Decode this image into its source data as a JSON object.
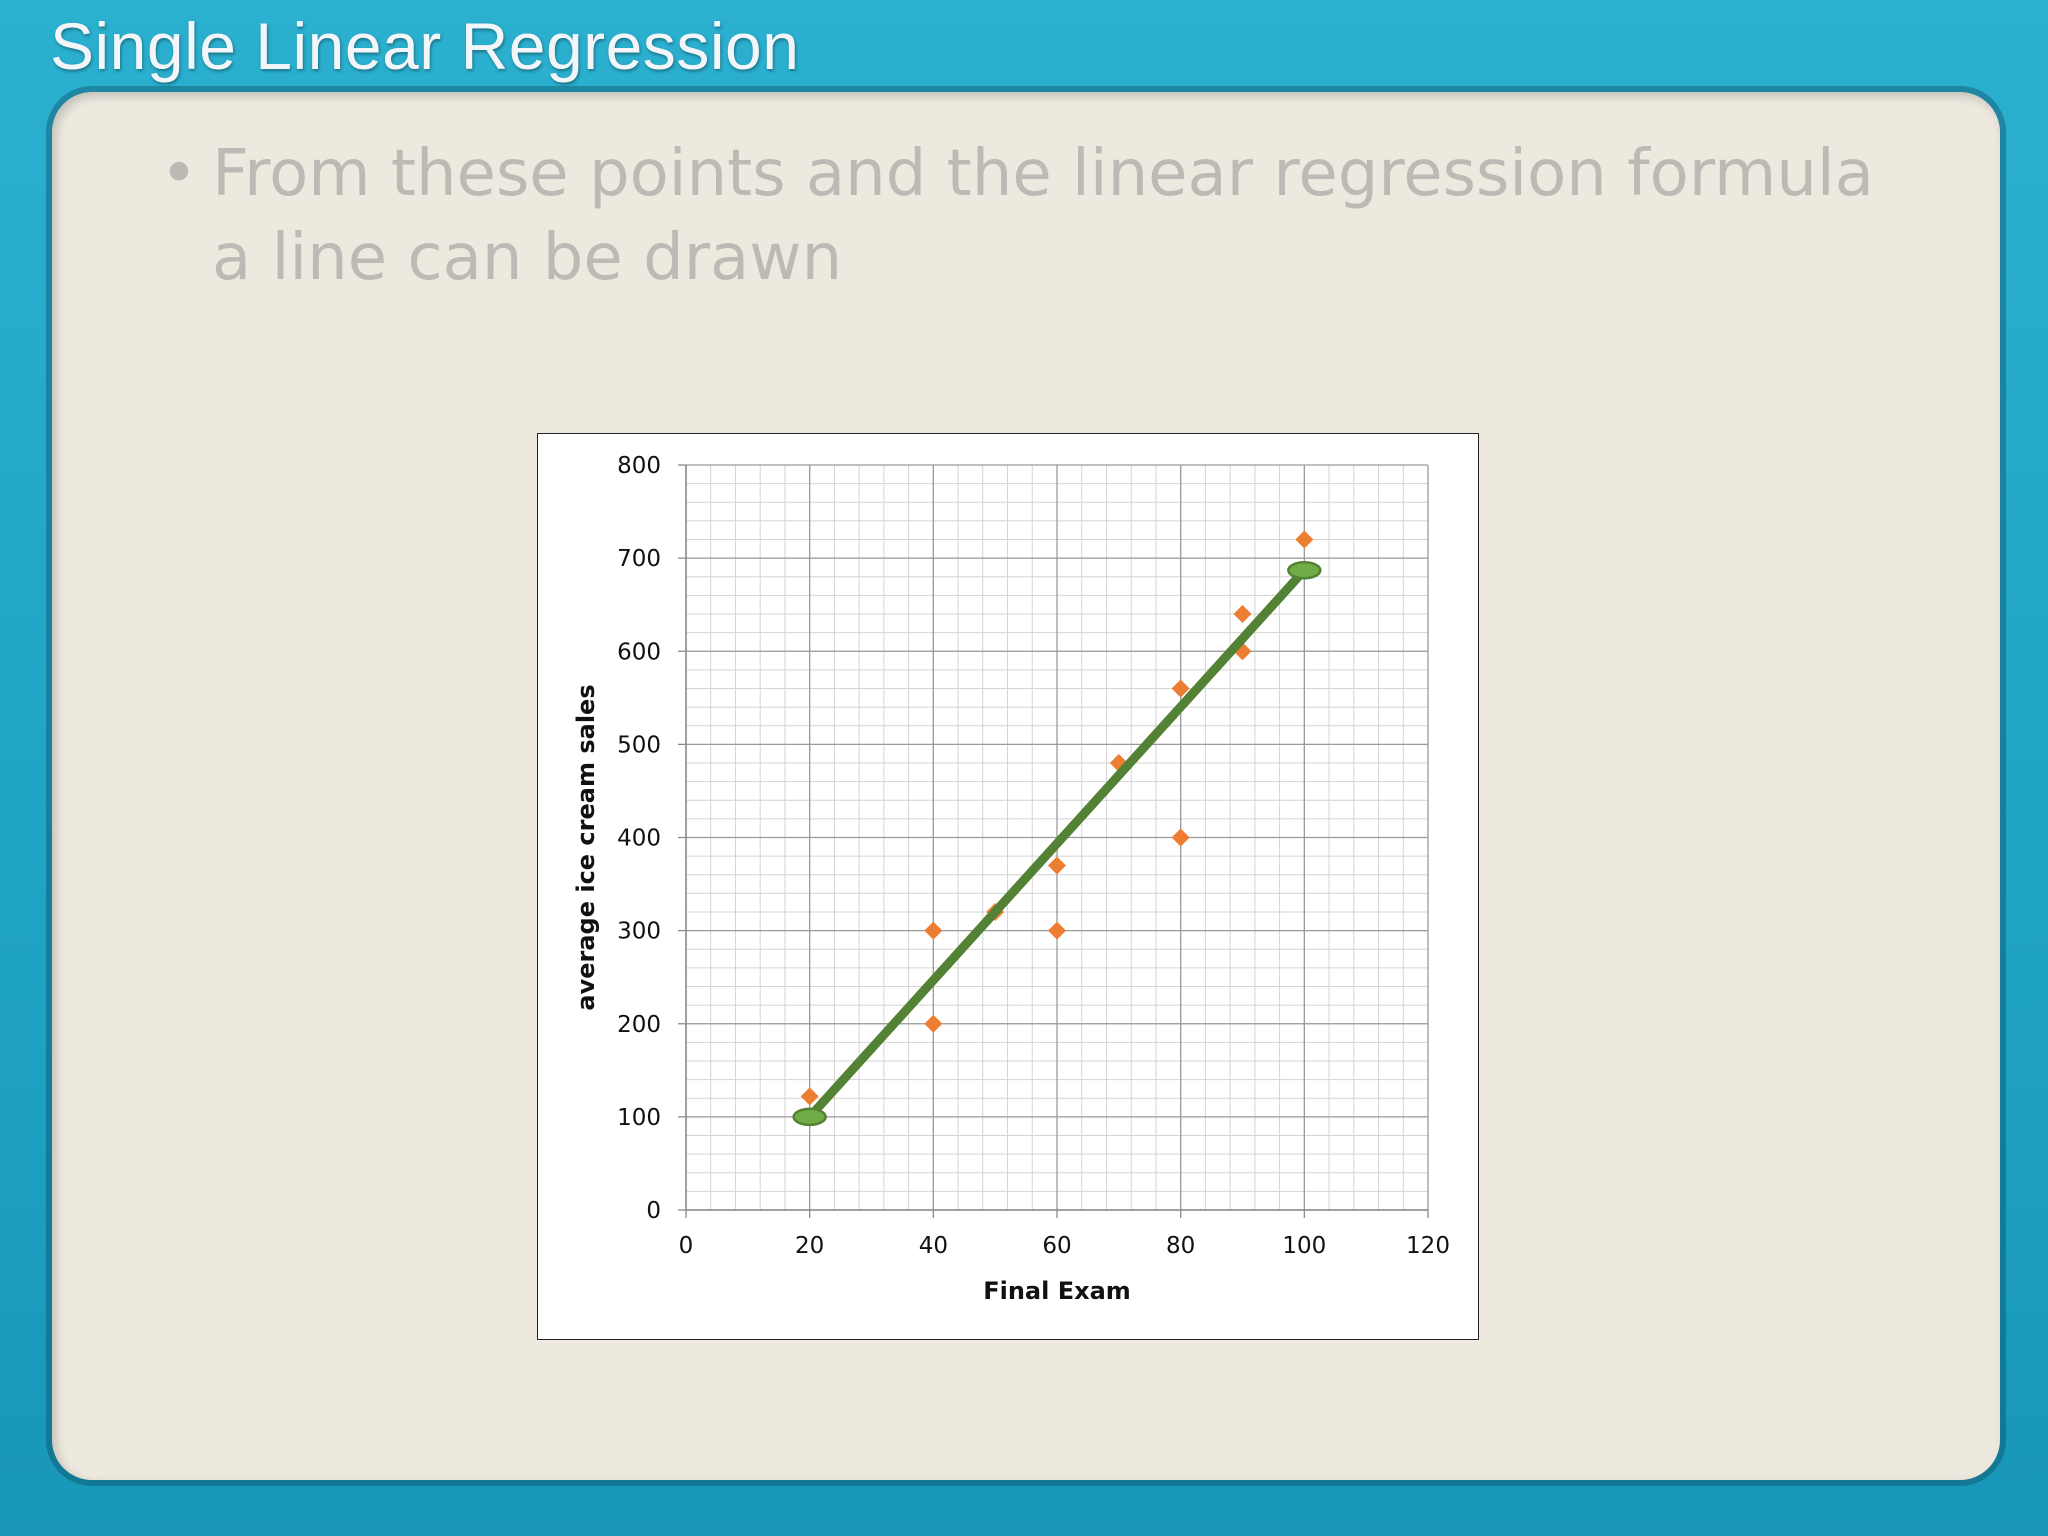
{
  "slide": {
    "title": "Single Linear Regression",
    "bullet_marker": "•",
    "bullet_text": "From these points and the linear regression formula a line can be drawn"
  },
  "chart_data": {
    "type": "scatter",
    "xlabel": "Final Exam",
    "ylabel": "average ice cream sales",
    "xlim": [
      0,
      120
    ],
    "ylim": [
      0,
      800
    ],
    "x_ticks": [
      0,
      20,
      40,
      60,
      80,
      100,
      120
    ],
    "y_ticks": [
      0,
      100,
      200,
      300,
      400,
      500,
      600,
      700,
      800
    ],
    "grid": true,
    "series": [
      {
        "marker": "diamond",
        "color": "#ed7d31",
        "points": [
          {
            "x": 20,
            "y": 122
          },
          {
            "x": 40,
            "y": 300
          },
          {
            "x": 40,
            "y": 200
          },
          {
            "x": 50,
            "y": 320
          },
          {
            "x": 60,
            "y": 370
          },
          {
            "x": 60,
            "y": 300
          },
          {
            "x": 70,
            "y": 480
          },
          {
            "x": 80,
            "y": 560
          },
          {
            "x": 80,
            "y": 400
          },
          {
            "x": 90,
            "y": 640
          },
          {
            "x": 90,
            "y": 600
          },
          {
            "x": 100,
            "y": 720
          }
        ]
      }
    ],
    "regression_line": {
      "color": "#548235",
      "start": {
        "x": 20,
        "y": 100
      },
      "end": {
        "x": 100,
        "y": 687
      }
    }
  },
  "colors": {
    "background": "#23a9c9",
    "panel": "#ede9df",
    "title_text": "#f2f6f8",
    "bullet_text": "#bdbab5"
  }
}
